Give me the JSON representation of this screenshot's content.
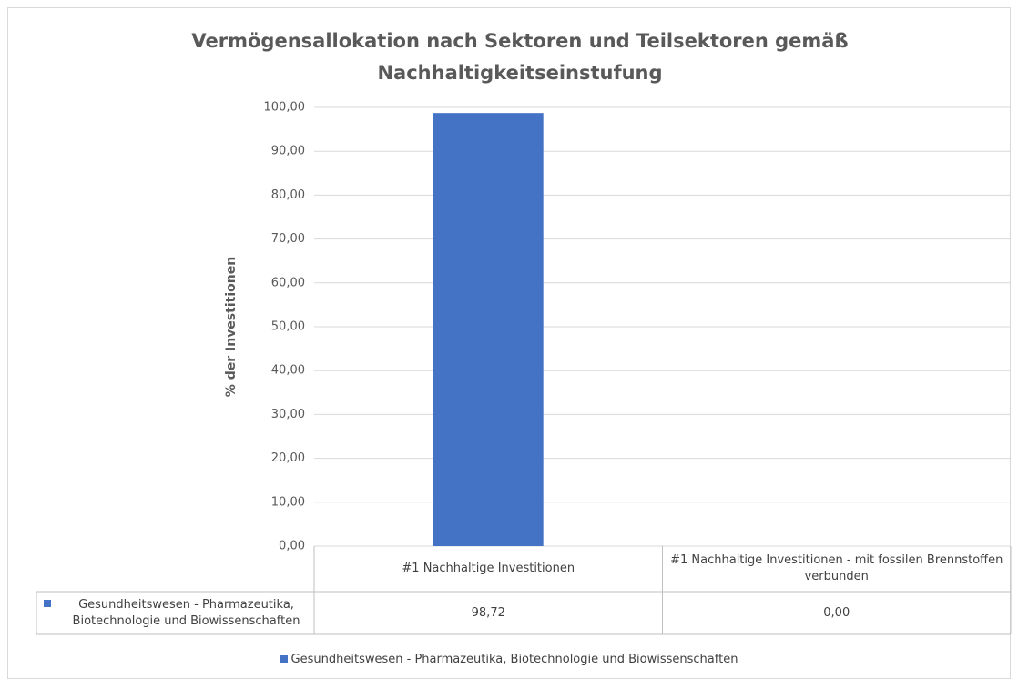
{
  "chart_data": {
    "type": "bar",
    "title": "Vermögensallokation nach Sektoren und Teilsektoren gemäß Nachhaltigkeitseinstufung",
    "y_axis_label": "% der Investitionen",
    "categories": [
      "#1 Nachhaltige Investitionen",
      "#1 Nachhaltige Investitionen - mit fossilen Brennstoffen verbunden"
    ],
    "series": [
      {
        "name": "Gesundheitswesen - Pharmazeutika, Biotechnologie und Biowissenschaften",
        "color": "#4472c4",
        "values": [
          98.72,
          0
        ],
        "value_labels": [
          "98,72",
          "0,00"
        ]
      }
    ],
    "ylim": [
      0,
      100
    ],
    "yticks": [
      {
        "value": 0,
        "label": "0,00"
      },
      {
        "value": 10,
        "label": "10,00"
      },
      {
        "value": 20,
        "label": "20,00"
      },
      {
        "value": 30,
        "label": "30,00"
      },
      {
        "value": 40,
        "label": "40,00"
      },
      {
        "value": 50,
        "label": "50,00"
      },
      {
        "value": 60,
        "label": "60,00"
      },
      {
        "value": 70,
        "label": "70,00"
      },
      {
        "value": 80,
        "label": "80,00"
      },
      {
        "value": 90,
        "label": "90,00"
      },
      {
        "value": 100,
        "label": "100,00"
      }
    ],
    "grid": true,
    "legend": "bottom"
  }
}
